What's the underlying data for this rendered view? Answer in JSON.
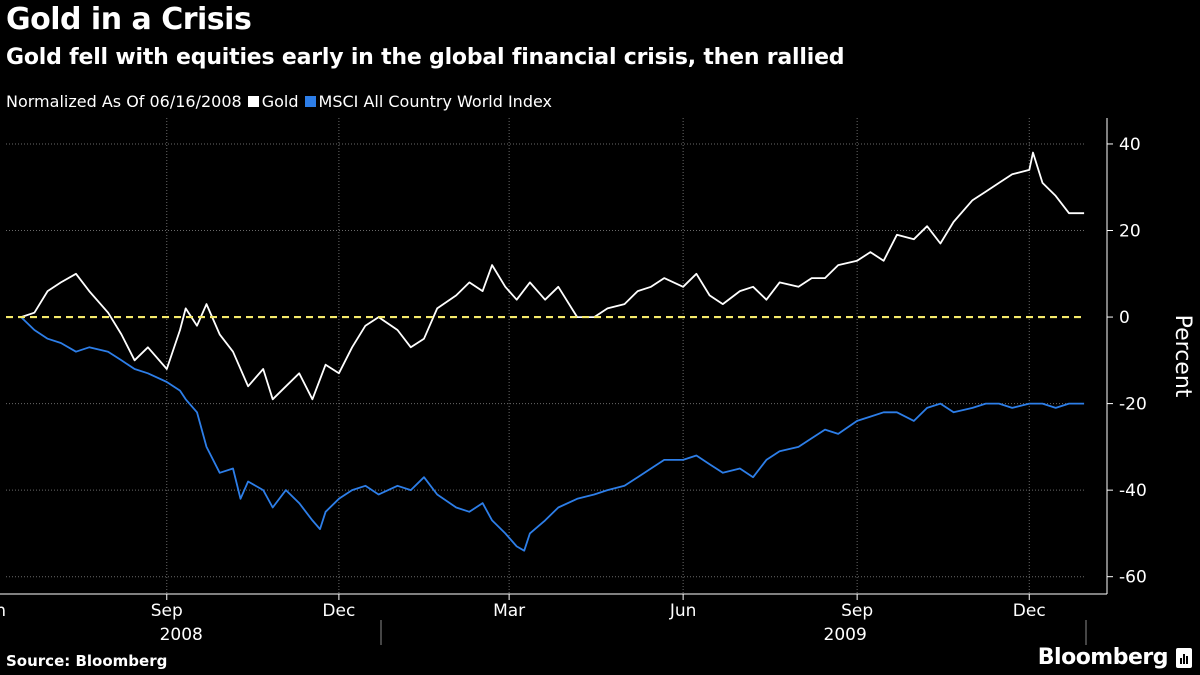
{
  "header": {
    "title": "Gold in a Crisis",
    "subtitle": "Gold fell with equities early in the global financial crisis, then rallied"
  },
  "legend": {
    "prefix": "Normalized As Of 06/16/2008",
    "items": [
      {
        "label": "Gold",
        "color": "#ffffff"
      },
      {
        "label": "MSCI All Country World Index",
        "color": "#2d7ee8"
      }
    ]
  },
  "footer": {
    "source": "Source: Bloomberg",
    "brand": "Bloomberg",
    "brand_icon": "bloomberg-chart-icon"
  },
  "colors": {
    "background": "#000000",
    "gold": "#ffffff",
    "msci": "#2d7ee8",
    "zero_line": "#f5ea6b",
    "grid": "#6a6a6a"
  },
  "chart_data": {
    "type": "line",
    "title": "Gold in a Crisis",
    "subtitle": "Gold fell with equities early in the global financial crisis, then rallied",
    "ylabel": "Percent",
    "xlabel": "",
    "x_unit": "month",
    "x_range": [
      "2008-06-08",
      "2009-12-31"
    ],
    "ylim": [
      -64,
      46
    ],
    "yticks": [
      -60,
      -40,
      -20,
      0,
      20,
      40
    ],
    "ytick_labels": [
      "-60",
      "-40",
      "-20",
      "0",
      "20",
      "40"
    ],
    "xticks": [
      {
        "label": "Jun",
        "date": "2008-06-01"
      },
      {
        "label": "Sep",
        "date": "2008-09-01"
      },
      {
        "label": "Dec",
        "date": "2008-12-01"
      },
      {
        "label": "Mar",
        "date": "2009-03-01"
      },
      {
        "label": "Jun",
        "date": "2009-06-01"
      },
      {
        "label": "Sep",
        "date": "2009-09-01"
      },
      {
        "label": "Dec",
        "date": "2009-12-01"
      }
    ],
    "year_labels": [
      {
        "label": "2008",
        "date": "2008-09-15"
      },
      {
        "label": "2009",
        "date": "2009-09-01"
      }
    ],
    "grid": true,
    "reference_line": {
      "y": 0,
      "style": "dashed"
    },
    "legend_position": "top-left",
    "series": [
      {
        "name": "Gold",
        "x": [
          "2008-06-16",
          "2008-06-23",
          "2008-06-30",
          "2008-07-07",
          "2008-07-15",
          "2008-07-22",
          "2008-08-01",
          "2008-08-08",
          "2008-08-15",
          "2008-08-22",
          "2008-09-01",
          "2008-09-08",
          "2008-09-11",
          "2008-09-17",
          "2008-09-22",
          "2008-09-29",
          "2008-10-06",
          "2008-10-14",
          "2008-10-22",
          "2008-10-27",
          "2008-11-03",
          "2008-11-10",
          "2008-11-17",
          "2008-11-24",
          "2008-12-01",
          "2008-12-08",
          "2008-12-15",
          "2008-12-22",
          "2009-01-01",
          "2009-01-08",
          "2009-01-15",
          "2009-01-22",
          "2009-02-01",
          "2009-02-08",
          "2009-02-15",
          "2009-02-20",
          "2009-02-27",
          "2009-03-05",
          "2009-03-12",
          "2009-03-20",
          "2009-03-27",
          "2009-04-06",
          "2009-04-15",
          "2009-04-22",
          "2009-05-01",
          "2009-05-08",
          "2009-05-15",
          "2009-05-22",
          "2009-06-01",
          "2009-06-08",
          "2009-06-15",
          "2009-06-22",
          "2009-07-01",
          "2009-07-08",
          "2009-07-15",
          "2009-07-22",
          "2009-08-01",
          "2009-08-08",
          "2009-08-15",
          "2009-08-22",
          "2009-09-01",
          "2009-09-08",
          "2009-09-15",
          "2009-09-22",
          "2009-10-01",
          "2009-10-08",
          "2009-10-15",
          "2009-10-22",
          "2009-11-01",
          "2009-11-08",
          "2009-11-15",
          "2009-11-22",
          "2009-12-01",
          "2009-12-03",
          "2009-12-08",
          "2009-12-15",
          "2009-12-22",
          "2009-12-30"
        ],
        "y": [
          0,
          1,
          6,
          8,
          10,
          6,
          1,
          -4,
          -10,
          -7,
          -12,
          -3,
          2,
          -2,
          3,
          -4,
          -8,
          -16,
          -12,
          -19,
          -16,
          -13,
          -19,
          -11,
          -13,
          -7,
          -2,
          0,
          -3,
          -7,
          -5,
          2,
          5,
          8,
          6,
          12,
          7,
          4,
          8,
          4,
          7,
          0,
          0,
          2,
          3,
          6,
          7,
          9,
          7,
          10,
          5,
          3,
          6,
          7,
          4,
          8,
          7,
          9,
          9,
          12,
          13,
          15,
          13,
          19,
          18,
          21,
          17,
          22,
          27,
          29,
          31,
          33,
          34,
          38,
          31,
          28,
          24,
          24
        ]
      },
      {
        "name": "MSCI All Country World Index",
        "x": [
          "2008-06-16",
          "2008-06-23",
          "2008-06-30",
          "2008-07-07",
          "2008-07-15",
          "2008-07-22",
          "2008-08-01",
          "2008-08-08",
          "2008-08-15",
          "2008-08-22",
          "2008-09-01",
          "2008-09-08",
          "2008-09-11",
          "2008-09-17",
          "2008-09-22",
          "2008-09-29",
          "2008-10-06",
          "2008-10-10",
          "2008-10-14",
          "2008-10-22",
          "2008-10-27",
          "2008-11-03",
          "2008-11-10",
          "2008-11-17",
          "2008-11-21",
          "2008-11-24",
          "2008-12-01",
          "2008-12-08",
          "2008-12-15",
          "2008-12-22",
          "2009-01-01",
          "2009-01-08",
          "2009-01-15",
          "2009-01-22",
          "2009-02-01",
          "2009-02-08",
          "2009-02-15",
          "2009-02-20",
          "2009-02-27",
          "2009-03-05",
          "2009-03-09",
          "2009-03-12",
          "2009-03-20",
          "2009-03-27",
          "2009-04-06",
          "2009-04-15",
          "2009-04-22",
          "2009-05-01",
          "2009-05-08",
          "2009-05-15",
          "2009-05-22",
          "2009-06-01",
          "2009-06-08",
          "2009-06-15",
          "2009-06-22",
          "2009-07-01",
          "2009-07-08",
          "2009-07-15",
          "2009-07-22",
          "2009-08-01",
          "2009-08-08",
          "2009-08-15",
          "2009-08-22",
          "2009-09-01",
          "2009-09-08",
          "2009-09-15",
          "2009-09-22",
          "2009-10-01",
          "2009-10-08",
          "2009-10-15",
          "2009-10-22",
          "2009-11-01",
          "2009-11-08",
          "2009-11-15",
          "2009-11-22",
          "2009-12-01",
          "2009-12-08",
          "2009-12-15",
          "2009-12-22",
          "2009-12-30"
        ],
        "y": [
          0,
          -3,
          -5,
          -6,
          -8,
          -7,
          -8,
          -10,
          -12,
          -13,
          -15,
          -17,
          -19,
          -22,
          -30,
          -36,
          -35,
          -42,
          -38,
          -40,
          -44,
          -40,
          -43,
          -47,
          -49,
          -45,
          -42,
          -40,
          -39,
          -41,
          -39,
          -40,
          -37,
          -41,
          -44,
          -45,
          -43,
          -47,
          -50,
          -53,
          -54,
          -50,
          -47,
          -44,
          -42,
          -41,
          -40,
          -39,
          -37,
          -35,
          -33,
          -33,
          -32,
          -34,
          -36,
          -35,
          -37,
          -33,
          -31,
          -30,
          -28,
          -26,
          -27,
          -24,
          -23,
          -22,
          -22,
          -24,
          -21,
          -20,
          -22,
          -21,
          -20,
          -20,
          -21,
          -20,
          -20,
          -21,
          -20,
          -20
        ]
      }
    ]
  }
}
